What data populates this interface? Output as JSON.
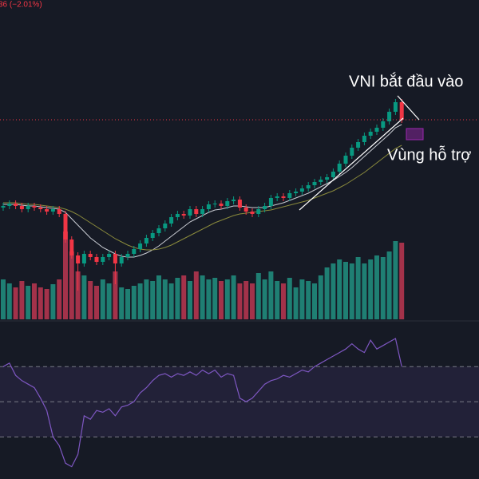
{
  "chart_data": [
    {
      "type": "candlestick",
      "header_text": "36 (−2.01%)",
      "annotations": [
        "VNI bắt đầu vào",
        "Vùng hỗ trợ"
      ],
      "ylim": [
        1140,
        1340
      ],
      "up_color": "#089981",
      "down_color": "#f23645",
      "open": [
        1210,
        1211,
        1212.5,
        1211,
        1209,
        1211,
        1210,
        1209,
        1207.5,
        1209,
        1206,
        1190,
        1180,
        1175,
        1181,
        1179,
        1176,
        1179,
        1181,
        1175,
        1179,
        1181,
        1184,
        1187.5,
        1191,
        1194,
        1197,
        1200,
        1204,
        1206,
        1205,
        1209,
        1206,
        1209,
        1212,
        1212.5,
        1211,
        1214,
        1215,
        1210,
        1207.5,
        1206,
        1209,
        1211,
        1216,
        1217,
        1216,
        1219,
        1220,
        1222,
        1224,
        1226,
        1227.5,
        1229,
        1232.5,
        1237.5,
        1242.5,
        1247.5,
        1251,
        1255,
        1257.5,
        1260,
        1264,
        1270,
        1276
      ],
      "high": [
        1213,
        1214.5,
        1214.5,
        1213,
        1213,
        1213,
        1212,
        1211,
        1211,
        1211,
        1208,
        1192,
        1182,
        1183,
        1183,
        1181,
        1181,
        1183,
        1183,
        1181,
        1183,
        1186,
        1189.5,
        1193,
        1196,
        1199,
        1202,
        1206,
        1208,
        1208,
        1211,
        1211,
        1211,
        1214,
        1214.5,
        1214.5,
        1216,
        1217,
        1217,
        1212,
        1209.5,
        1211,
        1213,
        1218,
        1219,
        1219,
        1221,
        1222,
        1224,
        1226,
        1228,
        1229.5,
        1231,
        1234.5,
        1239.5,
        1244.5,
        1249.5,
        1253,
        1257,
        1259.5,
        1262,
        1266,
        1272,
        1278,
        1278
      ],
      "low": [
        1208,
        1209,
        1209,
        1207,
        1207,
        1208,
        1207,
        1205.5,
        1205.5,
        1204,
        1188,
        1178,
        1158,
        1173,
        1177,
        1174,
        1174,
        1177,
        1162,
        1173,
        1177,
        1179,
        1182,
        1185.5,
        1189,
        1192,
        1195,
        1198,
        1202,
        1203,
        1203,
        1204,
        1204,
        1207,
        1210,
        1209,
        1209,
        1212,
        1208,
        1205.5,
        1204,
        1204,
        1207,
        1209,
        1214,
        1214,
        1214,
        1217,
        1218,
        1220,
        1222,
        1224,
        1225.5,
        1227,
        1230.5,
        1235.5,
        1240.5,
        1245.5,
        1249,
        1253,
        1255.5,
        1258,
        1262,
        1268,
        1263
      ],
      "close": [
        1211,
        1212.5,
        1211,
        1209,
        1211,
        1210,
        1209,
        1207.5,
        1209,
        1206,
        1190,
        1180,
        1175,
        1181,
        1179,
        1176,
        1179,
        1181,
        1175,
        1179,
        1181,
        1184,
        1187.5,
        1191,
        1194,
        1197,
        1200,
        1204,
        1206,
        1205,
        1209,
        1206,
        1209,
        1212,
        1212.5,
        1211,
        1214,
        1215,
        1210,
        1207.5,
        1206,
        1209,
        1211,
        1216,
        1217,
        1216,
        1219,
        1220,
        1222,
        1224,
        1226,
        1227.5,
        1229,
        1232.5,
        1237.5,
        1242.5,
        1247.5,
        1251,
        1255,
        1257.5,
        1260,
        1264,
        1270,
        1276,
        1265
      ],
      "series": [
        {
          "color": "#c9ccd3",
          "values": [
            1212,
            1212,
            1212,
            1211.5,
            1211,
            1211,
            1210.5,
            1210,
            1209.5,
            1209,
            1207,
            1203,
            1199,
            1195,
            1191,
            1188,
            1185,
            1183,
            1181,
            1179.5,
            1179,
            1179,
            1180,
            1181.5,
            1183.5,
            1186,
            1189,
            1192,
            1195,
            1198,
            1201,
            1203,
            1205,
            1207,
            1208.5,
            1209,
            1210,
            1211,
            1211,
            1210.5,
            1210,
            1210,
            1210,
            1211,
            1212,
            1213,
            1214.5,
            1216,
            1217.5,
            1219,
            1221,
            1223,
            1225,
            1227,
            1229.5,
            1232,
            1235,
            1238.5,
            1242,
            1245.5,
            1249,
            1252.5,
            1256,
            1260,
            1262
          ]
        },
        {
          "color": "#8a8a3c",
          "values": [
            1213,
            1213,
            1213,
            1212.5,
            1212,
            1212,
            1211.5,
            1211,
            1210.5,
            1210,
            1209,
            1207.5,
            1205.5,
            1203,
            1200.5,
            1198,
            1195.5,
            1193,
            1190.5,
            1188.5,
            1186.5,
            1185,
            1184,
            1183.5,
            1183.5,
            1184,
            1185,
            1186.5,
            1188.5,
            1190.5,
            1192.5,
            1194.5,
            1196.5,
            1198.5,
            1200.5,
            1202,
            1203.5,
            1205,
            1206,
            1206.5,
            1207,
            1207.5,
            1208,
            1208.5,
            1209.5,
            1210.5,
            1211.5,
            1212.5,
            1213.5,
            1214.5,
            1216,
            1217.5,
            1219,
            1220.5,
            1222.5,
            1224.5,
            1227,
            1229.5,
            1232,
            1235,
            1238,
            1241,
            1244,
            1247,
            1249
          ]
        }
      ]
    },
    {
      "type": "bar",
      "ylim": [
        0,
        200
      ],
      "up_color": "#1f7f73",
      "down_color": "#a3324a",
      "values": [
        50,
        45,
        40,
        48,
        42,
        45,
        40,
        38,
        44,
        50,
        110,
        85,
        60,
        55,
        48,
        42,
        50,
        45,
        60,
        40,
        38,
        42,
        45,
        50,
        48,
        55,
        50,
        45,
        52,
        55,
        48,
        60,
        55,
        50,
        52,
        48,
        50,
        55,
        45,
        48,
        45,
        58,
        50,
        60,
        48,
        45,
        52,
        40,
        50,
        48,
        45,
        55,
        65,
        70,
        75,
        72,
        70,
        78,
        70,
        75,
        80,
        78,
        85,
        98,
        96
      ]
    },
    {
      "type": "line",
      "ylim": [
        6,
        96
      ],
      "levels": [
        70,
        50,
        30
      ],
      "color": "#7e57c2",
      "values": [
        70,
        72,
        65,
        62,
        60,
        58,
        52,
        45,
        30,
        25,
        15,
        13,
        20,
        42,
        40,
        45,
        44,
        46,
        42,
        47,
        48,
        50,
        55,
        58,
        62,
        65,
        66,
        64,
        66,
        65,
        67,
        65,
        68,
        66,
        68,
        64,
        66,
        65,
        52,
        50,
        52,
        56,
        60,
        62,
        63,
        65,
        64,
        66,
        68,
        67,
        70,
        72,
        74,
        76,
        78,
        80,
        83,
        80,
        78,
        85,
        80,
        82,
        84,
        86,
        70
      ]
    }
  ]
}
